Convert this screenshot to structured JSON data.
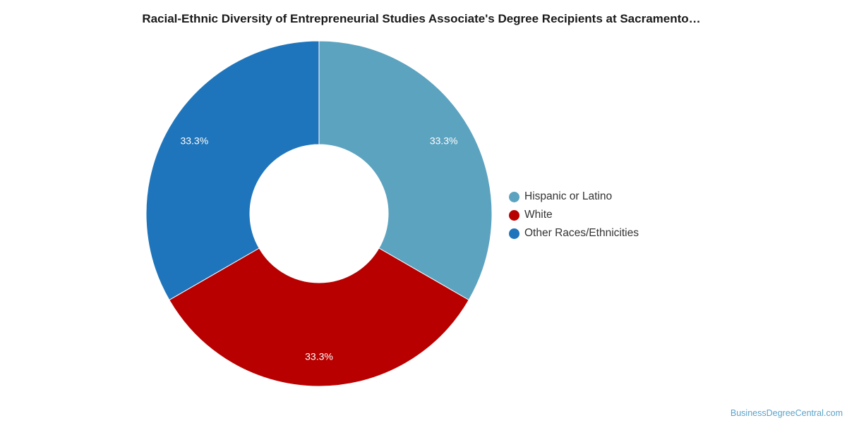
{
  "chart_data": {
    "type": "pie",
    "title": "Racial-Ethnic Diversity of Entrepreneurial Studies Associate's Degree Recipients at Sacramento…",
    "donut": true,
    "legend_position": "right",
    "slices": [
      {
        "label": "Hispanic or Latino",
        "value": 33.3,
        "display": "33.3%",
        "color": "#5ca3c0"
      },
      {
        "label": "White",
        "value": 33.3,
        "display": "33.3%",
        "color": "#b80000"
      },
      {
        "label": "Other Races/Ethnicities",
        "value": 33.3,
        "display": "33.3%",
        "color": "#1f75bb"
      }
    ]
  },
  "source": "BusinessDegreeCentral.com"
}
